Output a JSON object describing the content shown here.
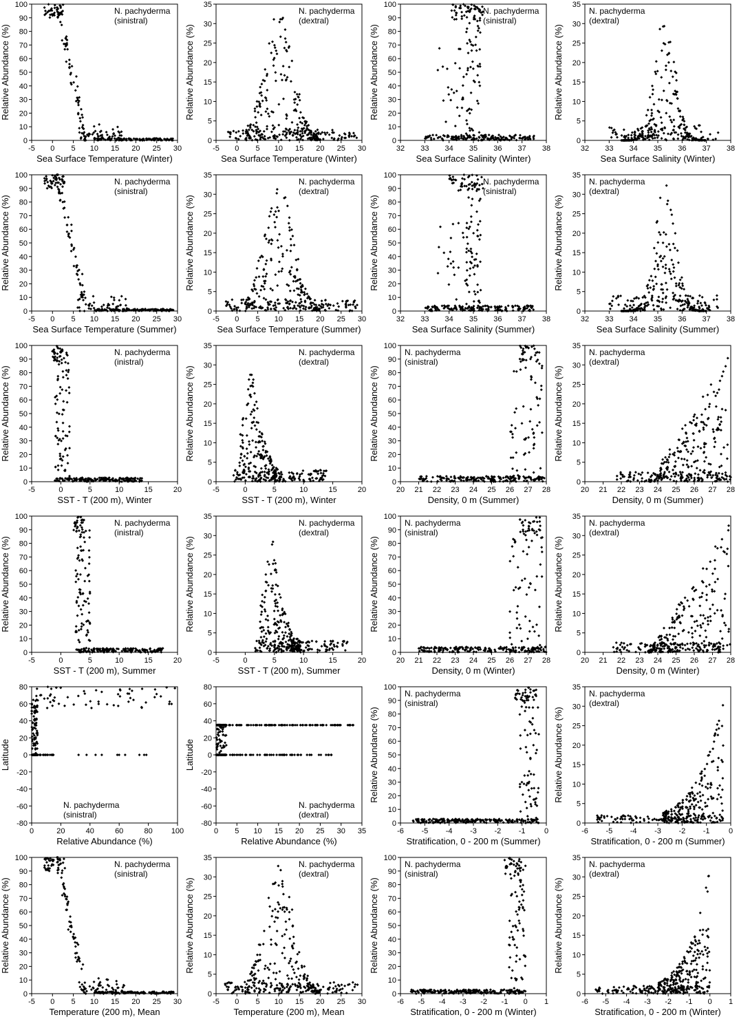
{
  "chart_data": [
    {
      "type": "scatter",
      "ylabel": "Relative Abundance (%)",
      "xlabel": "Sea Surface Temperature (Winter)",
      "xlim": [
        -5,
        30
      ],
      "xticks": [
        -5,
        0,
        5,
        10,
        15,
        20,
        25,
        30
      ],
      "ylim": [
        0,
        100
      ],
      "yticks": [
        0,
        10,
        20,
        30,
        40,
        50,
        60,
        70,
        80,
        90,
        100
      ],
      "legend": [
        "N. pachyderma",
        "(sinistral)"
      ],
      "legend_pos": "top-right",
      "species": "sinistral",
      "gen": "sst"
    },
    {
      "type": "scatter",
      "ylabel": "Relative Abundance (%)",
      "xlabel": "Sea Surface Temperature (Winter)",
      "xlim": [
        -5,
        30
      ],
      "xticks": [
        -5,
        0,
        5,
        10,
        15,
        20,
        25,
        30
      ],
      "ylim": [
        0,
        35
      ],
      "yticks": [
        0,
        5,
        10,
        15,
        20,
        25,
        30,
        35
      ],
      "legend": [
        "N. pachyderma",
        "(dextral)"
      ],
      "legend_pos": "top-right",
      "species": "dextral",
      "gen": "sst"
    },
    {
      "type": "scatter",
      "ylabel": "Relative Abundance (%)",
      "xlabel": "Sea Surface Salinity (Winter)",
      "xlim": [
        32,
        38
      ],
      "xticks": [
        32,
        33,
        34,
        35,
        36,
        37,
        38
      ],
      "ylim": [
        0,
        100
      ],
      "yticks": [
        0,
        10,
        20,
        30,
        40,
        50,
        60,
        70,
        80,
        90,
        100
      ],
      "legend": [
        "N. pachyderma",
        "(sinistral)"
      ],
      "legend_pos": "top-right",
      "species": "sinistral",
      "gen": "sal"
    },
    {
      "type": "scatter",
      "ylabel": "Relative Abundance (%)",
      "xlabel": "Sea Surface Salinity (Winter)",
      "xlim": [
        32,
        38
      ],
      "xticks": [
        32,
        33,
        34,
        35,
        36,
        37,
        38
      ],
      "ylim": [
        0,
        35
      ],
      "yticks": [
        0,
        5,
        10,
        15,
        20,
        25,
        30,
        35
      ],
      "legend": [
        "N. pachyderma",
        "(dextral)"
      ],
      "legend_pos": "top-left",
      "species": "dextral",
      "gen": "sal"
    },
    {
      "type": "scatter",
      "ylabel": "Relative Abundance (%)",
      "xlabel": "Sea Surface Temperature (Summer)",
      "xlim": [
        -5,
        30
      ],
      "xticks": [
        -5,
        0,
        5,
        10,
        15,
        20,
        25,
        30
      ],
      "ylim": [
        0,
        100
      ],
      "yticks": [
        0,
        10,
        20,
        30,
        40,
        50,
        60,
        70,
        80,
        90,
        100
      ],
      "legend": [
        "N. pachyderma",
        "(sinistral)"
      ],
      "legend_pos": "top-right",
      "species": "sinistral",
      "gen": "sst"
    },
    {
      "type": "scatter",
      "ylabel": "Relative Abundance (%)",
      "xlabel": "Sea Surface Temperature (Summer)",
      "xlim": [
        -5,
        30
      ],
      "xticks": [
        -5,
        0,
        5,
        10,
        15,
        20,
        25,
        30
      ],
      "ylim": [
        0,
        35
      ],
      "yticks": [
        0,
        5,
        10,
        15,
        20,
        25,
        30,
        35
      ],
      "legend": [
        "N. pachyderma",
        "(dextral)"
      ],
      "legend_pos": "top-right",
      "species": "dextral",
      "gen": "sst"
    },
    {
      "type": "scatter",
      "ylabel": "Relative Abundance (%)",
      "xlabel": "Sea Surface Salinity (Summer)",
      "xlim": [
        32,
        38
      ],
      "xticks": [
        32,
        33,
        34,
        35,
        36,
        37,
        38
      ],
      "ylim": [
        0,
        100
      ],
      "yticks": [
        0,
        10,
        20,
        30,
        40,
        50,
        60,
        70,
        80,
        90,
        100
      ],
      "legend": [
        "N. pachyderma",
        "(sinistral)"
      ],
      "legend_pos": "top-right",
      "species": "sinistral",
      "gen": "sal"
    },
    {
      "type": "scatter",
      "ylabel": "Relative Abundance (%)",
      "xlabel": "Sea Surface Salinity (Summer)",
      "xlim": [
        32,
        38
      ],
      "xticks": [
        32,
        33,
        34,
        35,
        36,
        37,
        38
      ],
      "ylim": [
        0,
        35
      ],
      "yticks": [
        0,
        5,
        10,
        15,
        20,
        25,
        30,
        35
      ],
      "legend": [
        "N. pachyderma",
        "(dextral)"
      ],
      "legend_pos": "top-left",
      "species": "dextral",
      "gen": "sal"
    },
    {
      "type": "scatter",
      "ylabel": "Relative Abundance (%)",
      "xlabel": "SST - T (200 m), Winter",
      "xlim": [
        -5,
        20
      ],
      "xticks": [
        -5,
        0,
        5,
        10,
        15,
        20
      ],
      "ylim": [
        0,
        100
      ],
      "yticks": [
        0,
        10,
        20,
        30,
        40,
        50,
        60,
        70,
        80,
        90,
        100
      ],
      "legend": [
        "N. pachyderma",
        "(inistral)"
      ],
      "legend_pos": "top-right",
      "species": "sinistral",
      "gen": "dT"
    },
    {
      "type": "scatter",
      "ylabel": "Relative Abundance (%)",
      "xlabel": "SST - T (200 m), Winter",
      "xlim": [
        -5,
        20
      ],
      "xticks": [
        -5,
        0,
        5,
        10,
        15,
        20
      ],
      "ylim": [
        0,
        35
      ],
      "yticks": [
        0,
        5,
        10,
        15,
        20,
        25,
        30,
        35
      ],
      "legend": [
        "N. pachyderma",
        "(dextral)"
      ],
      "legend_pos": "top-right",
      "species": "dextral",
      "gen": "dT"
    },
    {
      "type": "scatter",
      "ylabel": "Relative Abundance (%)",
      "xlabel": "Density, 0 m (Summer)",
      "xlim": [
        20,
        28
      ],
      "xticks": [
        20,
        21,
        22,
        23,
        24,
        25,
        26,
        27,
        28
      ],
      "ylim": [
        0,
        100
      ],
      "yticks": [
        0,
        10,
        20,
        30,
        40,
        50,
        60,
        70,
        80,
        90,
        100
      ],
      "legend": [
        "N. pachyderma",
        "(sinistral)"
      ],
      "legend_pos": "top-left",
      "species": "sinistral",
      "gen": "dens"
    },
    {
      "type": "scatter",
      "ylabel": "Relative Abundance (%)",
      "xlabel": "Density, 0 m (Summer)",
      "xlim": [
        20,
        28
      ],
      "xticks": [
        20,
        21,
        22,
        23,
        24,
        25,
        26,
        27,
        28
      ],
      "ylim": [
        0,
        35
      ],
      "yticks": [
        0,
        5,
        10,
        15,
        20,
        25,
        30,
        35
      ],
      "legend": [
        "N. pachyderma",
        "(dextral)"
      ],
      "legend_pos": "top-left",
      "species": "dextral",
      "gen": "dens"
    },
    {
      "type": "scatter",
      "ylabel": "Relative Abundance (%)",
      "xlabel": "SST - T (200 m), Summer",
      "xlim": [
        -5,
        20
      ],
      "xticks": [
        -5,
        0,
        5,
        10,
        15,
        20
      ],
      "ylim": [
        0,
        100
      ],
      "yticks": [
        0,
        10,
        20,
        30,
        40,
        50,
        60,
        70,
        80,
        90,
        100
      ],
      "legend": [
        "N. pachyderma",
        "(inistral)"
      ],
      "legend_pos": "top-right",
      "species": "sinistral",
      "gen": "dTs"
    },
    {
      "type": "scatter",
      "ylabel": "Relative Abundance (%)",
      "xlabel": "SST - T (200 m), Summer",
      "xlim": [
        -5,
        20
      ],
      "xticks": [
        -5,
        0,
        5,
        10,
        15,
        20
      ],
      "ylim": [
        0,
        35
      ],
      "yticks": [
        0,
        5,
        10,
        15,
        20,
        25,
        30,
        35
      ],
      "legend": [
        "N. pachyderma",
        "(dextral)"
      ],
      "legend_pos": "top-right",
      "species": "dextral",
      "gen": "dTs"
    },
    {
      "type": "scatter",
      "ylabel": "Relative Abundance (%)",
      "xlabel": "Density, 0 m (Winter)",
      "xlim": [
        20,
        28
      ],
      "xticks": [
        20,
        21,
        22,
        23,
        24,
        25,
        26,
        27,
        28
      ],
      "ylim": [
        0,
        100
      ],
      "yticks": [
        0,
        10,
        20,
        30,
        40,
        50,
        60,
        70,
        80,
        90,
        100
      ],
      "legend": [
        "N. pachyderma",
        "(sinistral)"
      ],
      "legend_pos": "top-left",
      "species": "sinistral",
      "gen": "densw"
    },
    {
      "type": "scatter",
      "ylabel": "Relative Abundance (%)",
      "xlabel": "Density, 0 m (Winter)",
      "xlim": [
        20,
        28
      ],
      "xticks": [
        20,
        21,
        22,
        23,
        24,
        25,
        26,
        27,
        28
      ],
      "ylim": [
        0,
        35
      ],
      "yticks": [
        0,
        5,
        10,
        15,
        20,
        25,
        30,
        35
      ],
      "legend": [
        "N. pachyderma",
        "(dextral)"
      ],
      "legend_pos": "top-left",
      "species": "dextral",
      "gen": "densw"
    },
    {
      "type": "scatter",
      "ylabel": "Latitude",
      "xlabel": "Relative Abundance (%)",
      "xlim": [
        0,
        100
      ],
      "xticks": [
        0,
        20,
        40,
        60,
        80,
        100
      ],
      "ylim": [
        -80,
        80
      ],
      "yticks": [
        -80,
        -60,
        -40,
        -20,
        0,
        20,
        40,
        60,
        80
      ],
      "legend": [
        "N. pachyderma",
        "(sinistral)"
      ],
      "legend_pos": "bottom-center",
      "species": "sinistral",
      "gen": "latS"
    },
    {
      "type": "scatter",
      "ylabel": "Latitude",
      "xlabel": "Relative Abundance (%)",
      "xlim": [
        0,
        35
      ],
      "xticks": [
        0,
        5,
        10,
        15,
        20,
        25,
        30,
        35
      ],
      "ylim": [
        -80,
        80
      ],
      "yticks": [
        -80,
        -60,
        -40,
        -20,
        0,
        20,
        40,
        60,
        80
      ],
      "legend": [
        "N. pachyderma",
        "(dextral)"
      ],
      "legend_pos": "bottom-right",
      "species": "dextral",
      "gen": "latD"
    },
    {
      "type": "scatter",
      "ylabel": "Relative Abundance (%)",
      "xlabel": "Stratification, 0 - 200 m (Summer)",
      "xlim": [
        -6,
        0
      ],
      "xticks": [
        -6,
        -5,
        -4,
        -3,
        -2,
        -1,
        0
      ],
      "ylim": [
        0,
        100
      ],
      "yticks": [
        0,
        10,
        20,
        30,
        40,
        50,
        60,
        70,
        80,
        90,
        100
      ],
      "legend": [
        "N. pachyderma",
        "(sinistral)"
      ],
      "legend_pos": "top-left",
      "species": "sinistral",
      "gen": "strat"
    },
    {
      "type": "scatter",
      "ylabel": "Relative Abundance (%)",
      "xlabel": "Stratification, 0 - 200 m (Summer)",
      "xlim": [
        -6,
        0
      ],
      "xticks": [
        -6,
        -5,
        -4,
        -3,
        -2,
        -1,
        0
      ],
      "ylim": [
        0,
        35
      ],
      "yticks": [
        0,
        5,
        10,
        15,
        20,
        25,
        30,
        35
      ],
      "legend": [
        "N. pachyderma",
        "(dextral)"
      ],
      "legend_pos": "top-left",
      "species": "dextral",
      "gen": "strat"
    },
    {
      "type": "scatter",
      "ylabel": "Relative Abundance (%)",
      "xlabel": "Temperature (200 m), Mean",
      "xlim": [
        -5,
        30
      ],
      "xticks": [
        -5,
        0,
        5,
        10,
        15,
        20,
        25,
        30
      ],
      "ylim": [
        0,
        100
      ],
      "yticks": [
        0,
        10,
        20,
        30,
        40,
        50,
        60,
        70,
        80,
        90,
        100
      ],
      "legend": [
        "N. pachyderma",
        "(sinistral)"
      ],
      "legend_pos": "top-right",
      "species": "sinistral",
      "gen": "sst"
    },
    {
      "type": "scatter",
      "ylabel": "Relative Abundance (%)",
      "xlabel": "Temperature (200 m), Mean",
      "xlim": [
        -5,
        30
      ],
      "xticks": [
        -5,
        0,
        5,
        10,
        15,
        20,
        25,
        30
      ],
      "ylim": [
        0,
        35
      ],
      "yticks": [
        0,
        5,
        10,
        15,
        20,
        25,
        30,
        35
      ],
      "legend": [
        "N. pachyderma",
        "(dextral)"
      ],
      "legend_pos": "top-right",
      "species": "dextral",
      "gen": "sst"
    },
    {
      "type": "scatter",
      "ylabel": "Relative Abundance (%)",
      "xlabel": "Stratification, 0 - 200 m (Winter)",
      "xlim": [
        -6,
        1
      ],
      "xticks": [
        -6,
        -5,
        -4,
        -3,
        -2,
        -1,
        0,
        1
      ],
      "ylim": [
        0,
        100
      ],
      "yticks": [
        0,
        10,
        20,
        30,
        40,
        50,
        60,
        70,
        80,
        90,
        100
      ],
      "legend": [
        "N. pachyderma",
        "(sinistral)"
      ],
      "legend_pos": "top-left",
      "species": "sinistral",
      "gen": "stratw"
    },
    {
      "type": "scatter",
      "ylabel": "Relative Abundance (%)",
      "xlabel": "Stratification, 0 - 200 m (Winter)",
      "xlim": [
        -6,
        1
      ],
      "xticks": [
        -6,
        -5,
        -4,
        -3,
        -2,
        -1,
        0,
        1
      ],
      "ylim": [
        0,
        35
      ],
      "yticks": [
        0,
        5,
        10,
        15,
        20,
        25,
        30,
        35
      ],
      "legend": [
        "N. pachyderma",
        "(dextral)"
      ],
      "legend_pos": "top-left",
      "species": "dextral",
      "gen": "stratw"
    }
  ]
}
